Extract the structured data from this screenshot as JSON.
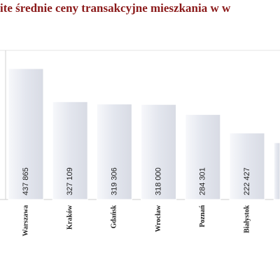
{
  "chart_data": {
    "type": "bar",
    "title": "ite średnie ceny transakcyjne mieszkania w w",
    "categories": [
      "Warszawa",
      "Kraków",
      "Gdańsk",
      "Wrocław",
      "Poznań",
      "Białystok",
      null
    ],
    "values": [
      437865,
      327109,
      319306,
      318000,
      284301,
      222427,
      190000
    ],
    "value_labels": [
      "437 865",
      "327 109",
      "319 306",
      "318 000",
      "284 301",
      "222 427",
      null
    ],
    "color": "#e6e8ef",
    "ylim": [
      0,
      500000
    ]
  }
}
